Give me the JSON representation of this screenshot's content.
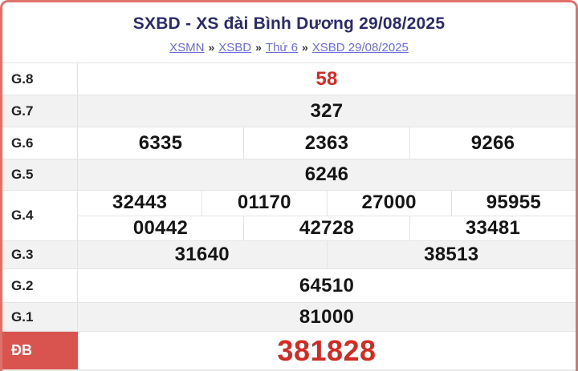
{
  "header": {
    "title": "SXBD - XS đài Bình Dương 29/08/2025",
    "breadcrumb": {
      "separator": "»",
      "items": [
        {
          "label": "XSMN"
        },
        {
          "label": "XSBD"
        },
        {
          "label": "Thứ 6"
        },
        {
          "label": "XSBD 29/08/2025"
        }
      ]
    }
  },
  "results": {
    "station": "SXBD",
    "draw_date": "29/08/2025",
    "rows": [
      {
        "label": "G.8",
        "lines": [
          [
            "58"
          ]
        ]
      },
      {
        "label": "G.7",
        "lines": [
          [
            "327"
          ]
        ]
      },
      {
        "label": "G.6",
        "lines": [
          [
            "6335",
            "2363",
            "9266"
          ]
        ]
      },
      {
        "label": "G.5",
        "lines": [
          [
            "6246"
          ]
        ]
      },
      {
        "label": "G.4",
        "lines": [
          [
            "32443",
            "01170",
            "27000",
            "95955"
          ],
          [
            "00442",
            "42728",
            "33481"
          ]
        ]
      },
      {
        "label": "G.3",
        "lines": [
          [
            "31640",
            "38513"
          ]
        ]
      },
      {
        "label": "G.2",
        "lines": [
          [
            "64510"
          ]
        ]
      },
      {
        "label": "G.1",
        "lines": [
          [
            "81000"
          ]
        ]
      },
      {
        "label": "ĐB",
        "lines": [
          [
            "381828"
          ]
        ]
      }
    ]
  },
  "colors": {
    "accent_red": "#d32b23",
    "border_salmon": "#e0706a",
    "special_label_bg": "#d9534f",
    "title_navy": "#2b2b6b",
    "link_blue": "#6b6be0",
    "row_alt_bg": "#f2f2f2"
  }
}
